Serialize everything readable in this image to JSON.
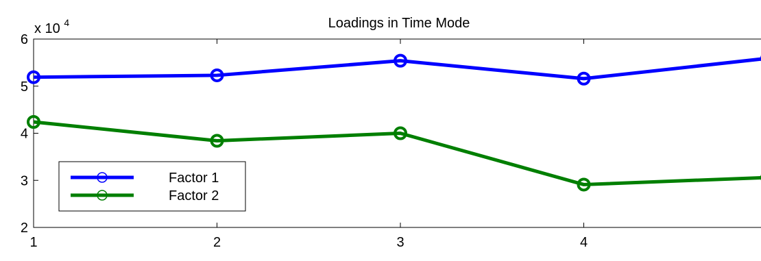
{
  "chart_data": {
    "type": "line",
    "title": "Loadings in Time Mode",
    "xlabel": "",
    "ylabel": "",
    "x": [
      1,
      2,
      3,
      4,
      5
    ],
    "xlim": [
      1,
      5
    ],
    "ylim": [
      20000,
      60000
    ],
    "x_ticks": [
      "1",
      "2",
      "3",
      "4"
    ],
    "y_ticks": [
      "2",
      "3",
      "4",
      "5",
      "6"
    ],
    "y_tick_values": [
      20000,
      30000,
      40000,
      50000,
      60000
    ],
    "y_scale_base": "x 10",
    "y_scale_exponent": "4",
    "grid": false,
    "legend_position": "lower-left",
    "series": [
      {
        "name": "Factor 1",
        "color": "#0000ff",
        "marker": "circle",
        "values": [
          51900,
          52300,
          55400,
          51600,
          55900
        ]
      },
      {
        "name": "Factor 2",
        "color": "#007f00",
        "marker": "circle",
        "values": [
          42400,
          38400,
          40000,
          29100,
          30600
        ]
      }
    ]
  }
}
